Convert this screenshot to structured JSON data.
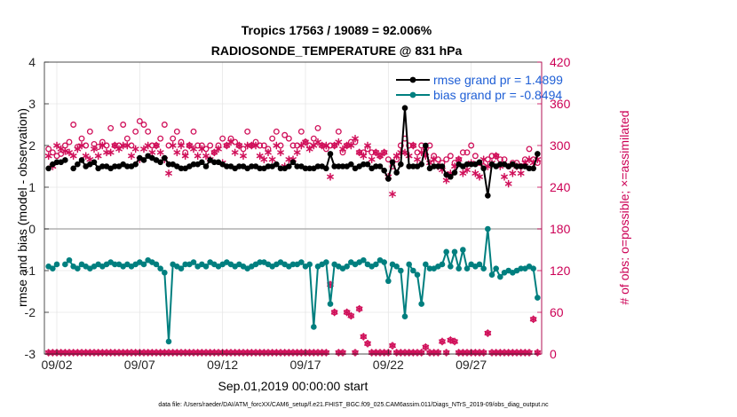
{
  "chart_data": {
    "type": "line",
    "title": "Tropics 17563 / 19089 = 92.006%",
    "subtitle": "RADIOSONDE_TEMPERATURE @ 831 hPa",
    "xlabel": "Sep.01,2019 00:00:00 start",
    "ylabel_left": "rmse and bias (model - observation)",
    "ylabel_right": "# of obs: o=possible; ×=assimilated",
    "footnote": "data file: /Users/raeder/DAI/ATM_forcXX/CAM6_setup/f.e21.FHIST_BGC.f09_025.CAM6assim.011/Diags_NTrS_2019-09/obs_diag_output.nc",
    "ylim_left": [
      -3,
      4
    ],
    "ylim_right": [
      0,
      420
    ],
    "xlim": [
      0.75,
      30.75
    ],
    "x_ticks": [
      1.5,
      6.5,
      11.5,
      16.5,
      21.5,
      26.5
    ],
    "x_tick_labels": [
      "09/02",
      "09/07",
      "09/12",
      "09/17",
      "09/22",
      "09/27"
    ],
    "y_left_ticks": [
      -3,
      -2,
      -1,
      0,
      1,
      2,
      3,
      4
    ],
    "y_left_tick_labels": [
      "-3",
      "-2",
      "-1",
      "0",
      "1",
      "2",
      "3",
      "4"
    ],
    "y_right_ticks": [
      0,
      60,
      120,
      180,
      240,
      300,
      360,
      420
    ],
    "y_right_tick_labels": [
      "0",
      "60",
      "120",
      "180",
      "240",
      "300",
      "360",
      "420"
    ],
    "zero_line": 0,
    "grid": true,
    "legend_location": "top-right",
    "x": [
      1.0,
      1.25,
      1.5,
      1.75,
      2.0,
      2.25,
      2.5,
      2.75,
      3.0,
      3.25,
      3.5,
      3.75,
      4.0,
      4.25,
      4.5,
      4.75,
      5.0,
      5.25,
      5.5,
      5.75,
      6.0,
      6.25,
      6.5,
      6.75,
      7.0,
      7.25,
      7.5,
      7.75,
      8.0,
      8.25,
      8.5,
      8.75,
      9.0,
      9.25,
      9.5,
      9.75,
      10.0,
      10.25,
      10.5,
      10.75,
      11.0,
      11.25,
      11.5,
      11.75,
      12.0,
      12.25,
      12.5,
      12.75,
      13.0,
      13.25,
      13.5,
      13.75,
      14.0,
      14.25,
      14.5,
      14.75,
      15.0,
      15.25,
      15.5,
      15.75,
      16.0,
      16.25,
      16.5,
      16.75,
      17.0,
      17.25,
      17.5,
      17.75,
      18.0,
      18.25,
      18.5,
      18.75,
      19.0,
      19.25,
      19.5,
      19.75,
      20.0,
      20.25,
      20.5,
      20.75,
      21.0,
      21.25,
      21.5,
      21.75,
      22.0,
      22.25,
      22.5,
      22.75,
      23.0,
      23.25,
      23.5,
      23.75,
      24.0,
      24.25,
      24.5,
      24.75,
      25.0,
      25.25,
      25.5,
      25.75,
      26.0,
      26.25,
      26.5,
      26.75,
      27.0,
      27.25,
      27.5,
      27.75,
      28.0,
      28.25,
      28.5,
      28.75,
      29.0,
      29.25,
      29.5,
      29.75,
      30.0,
      30.25,
      30.5
    ],
    "series": [
      {
        "name": "rmse",
        "axis": "left",
        "color": "#000000",
        "marker": "dot-line",
        "legend_label": "rmse grand pr = 1.4899",
        "values": [
          1.45,
          1.55,
          1.6,
          1.6,
          1.65,
          null,
          1.45,
          1.55,
          1.65,
          1.5,
          1.55,
          1.6,
          1.45,
          1.5,
          1.5,
          1.45,
          1.5,
          1.5,
          1.55,
          1.5,
          1.5,
          1.55,
          1.7,
          1.65,
          1.75,
          1.7,
          1.65,
          1.6,
          1.7,
          1.55,
          1.55,
          1.5,
          1.45,
          1.45,
          1.5,
          1.55,
          1.55,
          1.6,
          1.5,
          1.65,
          1.6,
          1.6,
          1.55,
          1.5,
          1.5,
          1.45,
          1.5,
          1.5,
          1.45,
          1.5,
          1.5,
          1.45,
          1.45,
          1.5,
          1.5,
          1.55,
          1.45,
          1.45,
          1.5,
          1.6,
          1.5,
          1.5,
          1.45,
          1.45,
          1.45,
          1.5,
          1.5,
          1.45,
          1.8,
          1.5,
          1.5,
          1.5,
          1.5,
          1.55,
          1.45,
          1.5,
          1.55,
          1.55,
          1.45,
          1.5,
          1.5,
          1.4,
          1.2,
          1.6,
          1.35,
          1.55,
          2.9,
          1.5,
          1.5,
          1.5,
          1.55,
          2.0,
          1.45,
          1.5,
          1.5,
          1.5,
          1.3,
          1.25,
          1.35,
          1.55,
          1.5,
          1.55,
          1.55,
          1.55,
          1.6,
          1.45,
          0.8,
          1.55,
          1.5,
          1.55,
          1.55,
          1.5,
          1.55,
          1.5,
          1.5,
          1.5,
          1.45,
          1.45,
          1.8
        ]
      },
      {
        "name": "bias",
        "axis": "left",
        "color": "#007f7f",
        "marker": "dot-line",
        "legend_label": "bias grand pr = -0.8494",
        "values": [
          -0.9,
          -0.95,
          -0.85,
          null,
          -0.85,
          -0.75,
          -0.9,
          -0.95,
          -0.85,
          -0.9,
          -0.95,
          -0.9,
          -0.85,
          -0.9,
          -0.85,
          -0.8,
          -0.85,
          -0.85,
          -0.9,
          -0.85,
          -0.9,
          -0.85,
          -0.8,
          -0.85,
          -0.75,
          -0.8,
          -0.85,
          -0.95,
          -1.05,
          -2.7,
          -0.85,
          -0.9,
          -0.95,
          -0.85,
          -0.85,
          -0.8,
          -0.9,
          -0.85,
          -0.9,
          -0.8,
          -0.85,
          -0.9,
          -0.85,
          -0.8,
          -0.85,
          -0.9,
          -0.85,
          -0.9,
          -0.95,
          -0.9,
          -0.85,
          -0.8,
          -0.8,
          -0.85,
          -0.9,
          -0.85,
          -0.8,
          -0.85,
          -0.9,
          -0.85,
          -0.85,
          -0.8,
          -0.9,
          -0.85,
          -2.35,
          -0.9,
          -0.85,
          -0.8,
          -1.8,
          -0.85,
          -0.9,
          -0.95,
          -0.9,
          -0.8,
          -0.85,
          -0.8,
          -0.75,
          -0.85,
          -0.9,
          -0.85,
          -0.75,
          -0.8,
          -1.25,
          -0.85,
          -0.9,
          -1.0,
          -2.1,
          -0.85,
          -1.0,
          -1.1,
          -1.8,
          -0.85,
          -0.95,
          -0.95,
          -0.9,
          -0.85,
          -0.55,
          -0.9,
          -0.55,
          -0.95,
          -0.5,
          -0.95,
          -0.85,
          -0.9,
          -0.85,
          -0.95,
          0.0,
          -1.1,
          -0.95,
          -1.15,
          -1.05,
          -1.0,
          -1.05,
          -1.0,
          -0.95,
          -0.95,
          -0.9,
          -0.95,
          -1.65
        ]
      },
      {
        "name": "obs possible",
        "axis": "right",
        "color": "#d0105a",
        "marker": "open-circle",
        "values": [
          295,
          290,
          285,
          288,
          300,
          305,
          330,
          298,
          310,
          300,
          320,
          302,
          298,
          305,
          300,
          325,
          300,
          300,
          330,
          310,
          300,
          320,
          335,
          330,
          320,
          300,
          300,
          310,
          330,
          300,
          310,
          320,
          305,
          290,
          300,
          320,
          300,
          300,
          295,
          300,
          290,
          300,
          310,
          300,
          310,
          305,
          300,
          295,
          320,
          300,
          305,
          300,
          300,
          295,
          310,
          320,
          300,
          315,
          310,
          300,
          300,
          320,
          305,
          300,
          310,
          325,
          300,
          295,
          300,
          300,
          320,
          290,
          300,
          305,
          305,
          290,
          290,
          295,
          290,
          290,
          285,
          290,
          280,
          270,
          280,
          300,
          310,
          300,
          300,
          290,
          300,
          295,
          300,
          285,
          280,
          275,
          280,
          285,
          275,
          280,
          290,
          290,
          300,
          285,
          275,
          270,
          280,
          285,
          285,
          280,
          280,
          270,
          275,
          275,
          270,
          280,
          295,
          280,
          275
        ]
      },
      {
        "name": "obs assimilated",
        "axis": "right",
        "color": "#d0105a",
        "marker": "asterisk",
        "values": [
          285,
          270,
          300,
          295,
          292,
          290,
          285,
          295,
          300,
          285,
          280,
          295,
          285,
          300,
          290,
          290,
          300,
          295,
          300,
          300,
          285,
          295,
          280,
          295,
          300,
          290,
          300,
          290,
          280,
          260,
          300,
          290,
          300,
          285,
          300,
          295,
          285,
          295,
          285,
          280,
          290,
          295,
          275,
          300,
          305,
          290,
          300,
          285,
          300,
          300,
          300,
          285,
          280,
          290,
          280,
          300,
          290,
          270,
          280,
          280,
          290,
          300,
          305,
          295,
          300,
          305,
          300,
          300,
          255,
          300,
          305,
          295,
          300,
          300,
          310,
          290,
          285,
          300,
          280,
          290,
          285,
          290,
          255,
          230,
          285,
          290,
          290,
          285,
          300,
          280,
          290,
          285,
          275,
          280,
          270,
          265,
          250,
          260,
          270,
          280,
          260,
          265,
          275,
          260,
          255,
          280,
          270,
          275,
          285,
          270,
          255,
          245,
          260,
          270,
          260,
          275,
          280,
          275,
          280
        ]
      },
      {
        "name": "possible minus assimilated",
        "axis": "right",
        "color": "#d0105a",
        "marker": "open-circle-and-asterisk",
        "comment": "secondary near-zero row of markers",
        "values": [
          2,
          2,
          2,
          2,
          2,
          2,
          2,
          2,
          2,
          2,
          2,
          2,
          2,
          2,
          2,
          2,
          2,
          2,
          2,
          2,
          2,
          2,
          2,
          2,
          2,
          2,
          2,
          2,
          2,
          2,
          2,
          2,
          2,
          2,
          2,
          2,
          2,
          2,
          2,
          2,
          2,
          2,
          2,
          2,
          2,
          2,
          2,
          2,
          2,
          2,
          2,
          2,
          2,
          2,
          2,
          2,
          2,
          2,
          2,
          2,
          2,
          2,
          2,
          2,
          2,
          2,
          2,
          2,
          100,
          60,
          2,
          2,
          60,
          55,
          2,
          65,
          25,
          15,
          2,
          2,
          2,
          2,
          2,
          12,
          2,
          2,
          2,
          2,
          2,
          2,
          2,
          10,
          2,
          2,
          2,
          18,
          2,
          20,
          18,
          2,
          2,
          2,
          2,
          2,
          2,
          2,
          30,
          2,
          2,
          2,
          2,
          2,
          2,
          2,
          2,
          2,
          2,
          50,
          2
        ]
      }
    ]
  }
}
